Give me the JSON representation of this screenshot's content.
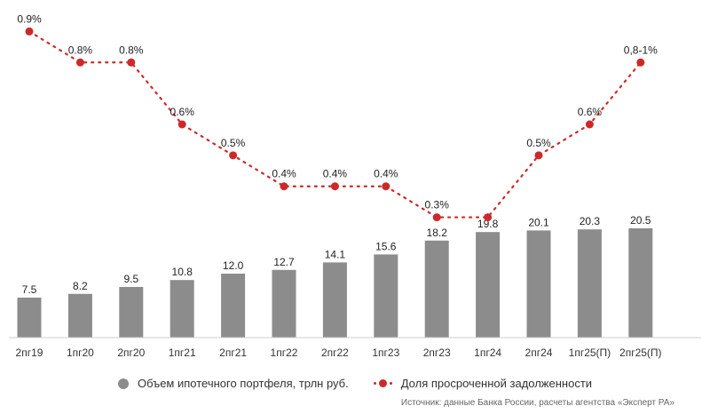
{
  "chart_data": {
    "type": "bar",
    "categories": [
      "2пг19",
      "1пг20",
      "2пг20",
      "1пг21",
      "2пг21",
      "1пг22",
      "2пг22",
      "1пг23",
      "2пг23",
      "1пг24",
      "2пг24",
      "1пг25(П)",
      "2пг25(П)"
    ],
    "series": [
      {
        "name": "Объем ипотечного портфеля, трлн руб.",
        "kind": "bar",
        "values": [
          7.5,
          8.2,
          9.5,
          10.8,
          12.0,
          12.7,
          14.1,
          15.6,
          18.2,
          19.8,
          20.1,
          20.3,
          20.5
        ],
        "labels": [
          "7.5",
          "8.2",
          "9.5",
          "10.8",
          "12.0",
          "12.7",
          "14.1",
          "15.6",
          "18.2",
          "19.8",
          "20.1",
          "20.3",
          "20.5"
        ],
        "color": "#8c8c8c"
      },
      {
        "name": "Доля просроченной задолженности",
        "kind": "line",
        "values": [
          0.9,
          0.8,
          0.8,
          0.6,
          0.5,
          0.4,
          0.4,
          0.4,
          0.3,
          0.3,
          0.5,
          0.6,
          0.8
        ],
        "labels": [
          "0.9%",
          "0.8%",
          "0.8%",
          "0.6%",
          "0.5%",
          "0.4%",
          "0.4%",
          "0.4%",
          "0.3%",
          "",
          "0.5%",
          "0.6%",
          "0,8-1%"
        ],
        "color": "#cc2a2a",
        "style": "dotted"
      }
    ],
    "bar_ylim": [
      0,
      60
    ],
    "line_ylim": [
      0.25,
      0.95
    ],
    "legend_position": "bottom",
    "source": "Источник: данные Банка России, расчеты агентства «Эксперт РА»"
  }
}
